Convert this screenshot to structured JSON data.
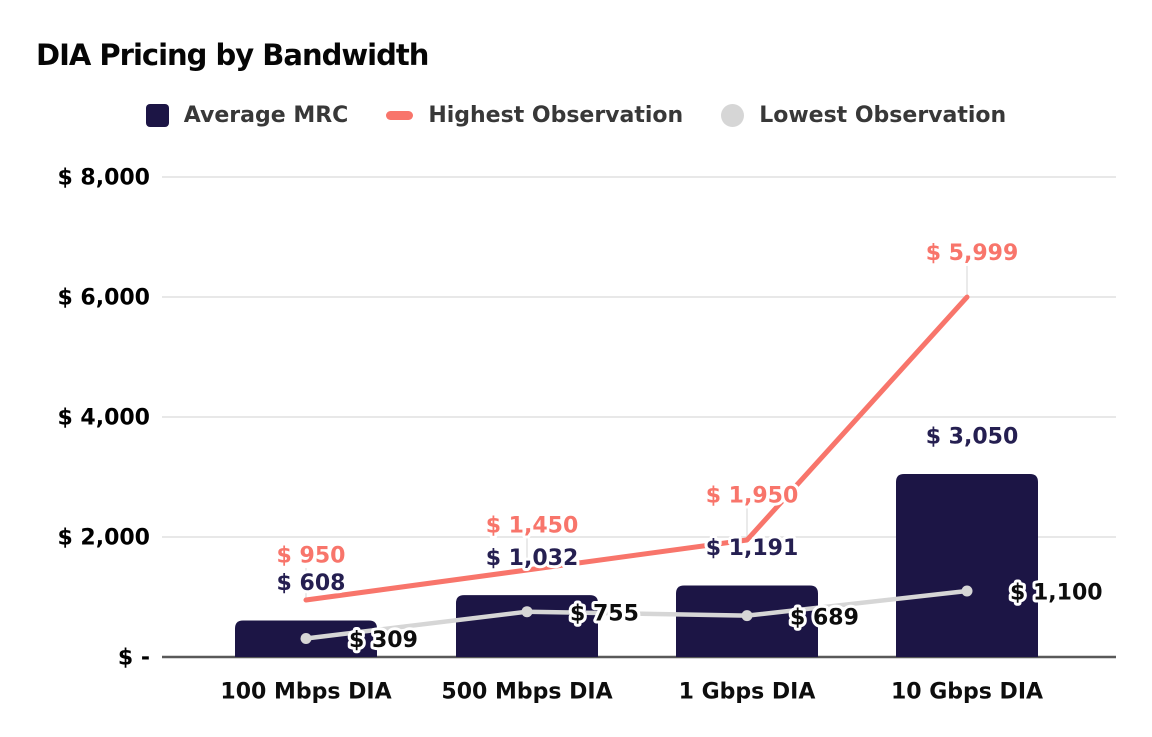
{
  "title": "DIA Pricing by Bandwidth",
  "legend": {
    "items": [
      {
        "label": "Average MRC",
        "marker": "square",
        "color": "#1c1545"
      },
      {
        "label": "Highest Observation",
        "marker": "dash",
        "color": "#f8756b"
      },
      {
        "label": "Lowest Observation",
        "marker": "circle",
        "color": "#d6d6d6"
      }
    ]
  },
  "chart_data": {
    "type": "combo (bar + line)",
    "title": "DIA Pricing by Bandwidth",
    "categories": [
      "100 Mbps DIA",
      "500 Mbps DIA",
      "1 Gbps DIA",
      "10 Gbps DIA"
    ],
    "series": [
      {
        "name": "Average MRC",
        "type": "bar",
        "color": "#1c1545",
        "values": [
          608,
          1032,
          1191,
          3050
        ],
        "value_labels": [
          "$ 608",
          "$ 1,032",
          "$ 1,191",
          "$ 3,050"
        ],
        "label_color": "#251f51"
      },
      {
        "name": "Highest Observation",
        "type": "line",
        "markers": false,
        "color": "#f8756b",
        "values": [
          950,
          1450,
          1950,
          5999
        ],
        "value_labels": [
          "$ 950",
          "$ 1,450",
          "$ 1,950",
          "$ 5,999"
        ],
        "label_color": "#f8756b"
      },
      {
        "name": "Lowest Observation",
        "type": "line",
        "markers": true,
        "color": "#d6d6d6",
        "values": [
          309,
          755,
          689,
          1100
        ],
        "value_labels": [
          "$ 309",
          "$ 755",
          "$ 689",
          "$ 1,100"
        ],
        "label_color": "#0d0d0d"
      }
    ],
    "y_axis": {
      "range": [
        0,
        8000
      ],
      "ticks": [
        {
          "value": 0,
          "label": "$ -"
        },
        {
          "value": 2000,
          "label": "$ 2,000"
        },
        {
          "value": 4000,
          "label": "$ 4,000"
        },
        {
          "value": 6000,
          "label": "$ 6,000"
        },
        {
          "value": 8000,
          "label": "$ 8,000"
        }
      ],
      "grid_color": "#d9d9d9",
      "baseline_color": "#595959",
      "stem_color": "#e3e3e3"
    },
    "legend_position": "top",
    "grid": "horizontal only"
  }
}
